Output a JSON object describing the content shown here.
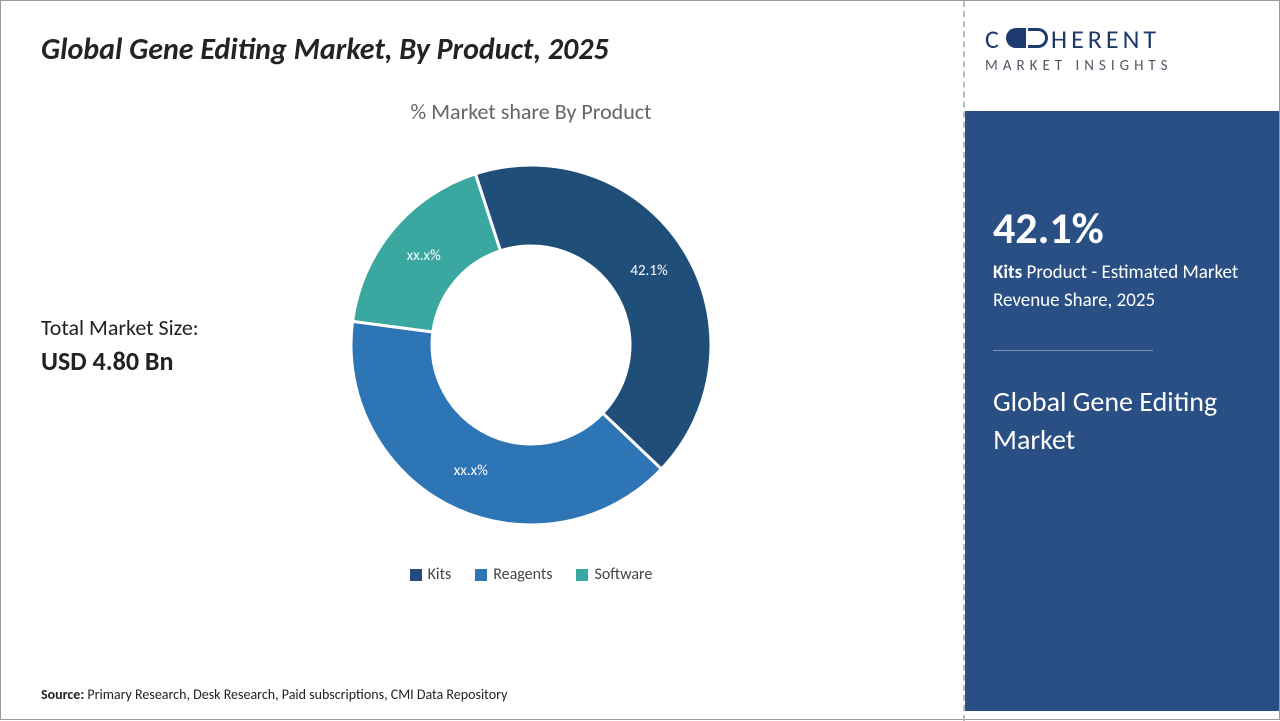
{
  "title": "Global Gene Editing Market, By Product, 2025",
  "chart": {
    "type": "donut",
    "subtitle": "% Market share By Product",
    "inner_radius_ratio": 0.55,
    "background_color": "#ffffff",
    "series": [
      {
        "name": "Kits",
        "value": 42.1,
        "label": "42.1%",
        "color": "#1f4e79"
      },
      {
        "name": "Reagents",
        "value": 40.0,
        "label": "xx.x%",
        "color": "#2e75b6"
      },
      {
        "name": "Software",
        "value": 17.9,
        "label": "xx.x%",
        "color": "#3aa8a0"
      }
    ],
    "start_angle_deg": -18,
    "gap_stroke": "#ffffff",
    "gap_stroke_width": 3,
    "label_color": "#ffffff",
    "label_fontsize": 15
  },
  "market_size": {
    "label": "Total Market Size:",
    "value": "USD 4.80 Bn"
  },
  "legend": {
    "items": [
      "Kits",
      "Reagents",
      "Software"
    ],
    "colors": [
      "#1f4e79",
      "#2e75b6",
      "#3aa8a0"
    ],
    "fontsize": 16,
    "text_color": "#444444"
  },
  "source": {
    "prefix": "Source:",
    "text": "Primary Research, Desk Research, Paid subscriptions, CMI Data Repository"
  },
  "logo": {
    "line1_a": "C",
    "line1_b": "HERENT",
    "line2": "MARKET INSIGHTS",
    "brand_color": "#1d3a6e"
  },
  "side_panel": {
    "background": "#294f84",
    "stat_value": "42.1%",
    "stat_desc_bold": "Kits",
    "stat_desc_rest": " Product - Estimated Market Revenue Share, 2025",
    "market_name": "Global Gene Editing Market",
    "divider_color": "#7a93b6"
  }
}
